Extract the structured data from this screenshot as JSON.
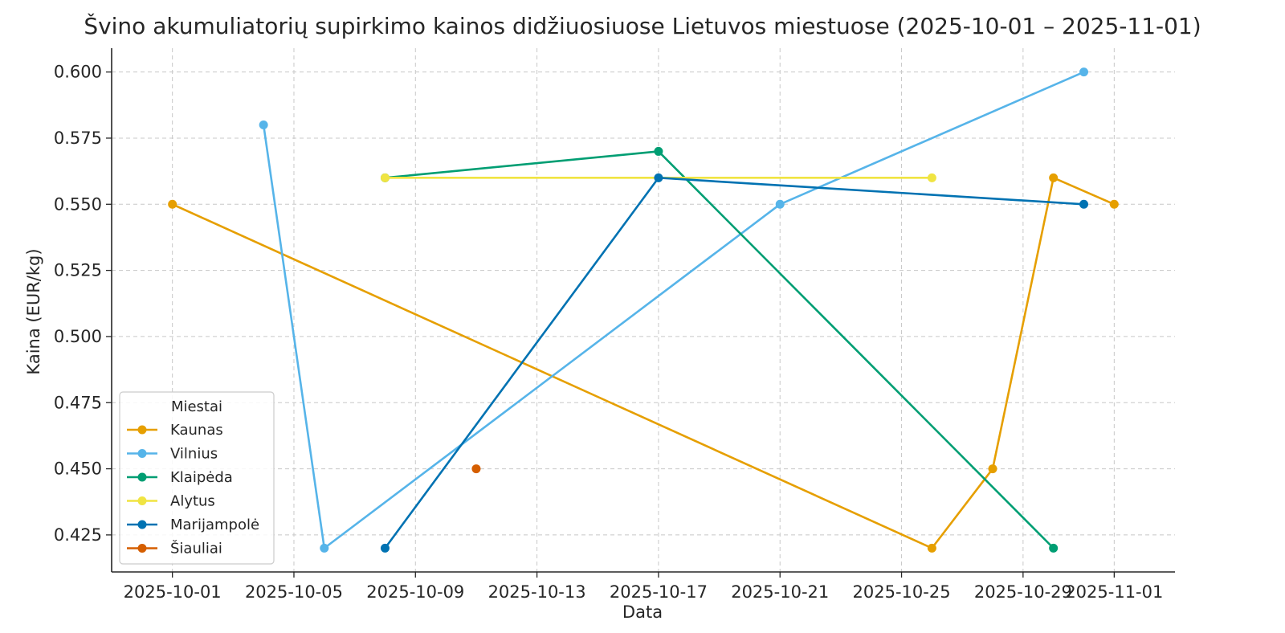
{
  "chart_data": {
    "type": "line",
    "title": "Švino akumuliatorių supirkimo kainos didžiuosiuose Lietuvos miestuose (2025-10-01 – 2025-11-01)",
    "xlabel": "Data",
    "ylabel": "Kaina (EUR/kg)",
    "x_ticks": [
      "2025-10-01",
      "2025-10-05",
      "2025-10-09",
      "2025-10-13",
      "2025-10-17",
      "2025-10-21",
      "2025-10-25",
      "2025-10-29",
      "2025-11-01"
    ],
    "y_ticks": [
      "0.425",
      "0.450",
      "0.475",
      "0.500",
      "0.525",
      "0.550",
      "0.575",
      "0.600"
    ],
    "xlim": [
      "2025-09-29",
      "2025-11-03"
    ],
    "ylim": [
      0.411,
      0.609
    ],
    "grid": true,
    "legend_title": "Miestai",
    "legend_position": "lower-left",
    "series": [
      {
        "name": "Kaunas",
        "color": "#E69F00",
        "points": [
          [
            "2025-10-01",
            0.55
          ],
          [
            "2025-10-26",
            0.42
          ],
          [
            "2025-10-28",
            0.45
          ],
          [
            "2025-10-30",
            0.56
          ],
          [
            "2025-11-01",
            0.55
          ]
        ]
      },
      {
        "name": "Vilnius",
        "color": "#56B4E9",
        "points": [
          [
            "2025-10-04",
            0.58
          ],
          [
            "2025-10-06",
            0.42
          ],
          [
            "2025-10-21",
            0.55
          ],
          [
            "2025-10-31",
            0.6
          ]
        ]
      },
      {
        "name": "Klaipėda",
        "color": "#009E73",
        "points": [
          [
            "2025-10-08",
            0.56
          ],
          [
            "2025-10-17",
            0.57
          ],
          [
            "2025-10-30",
            0.42
          ]
        ]
      },
      {
        "name": "Alytus",
        "color": "#F0E442",
        "points": [
          [
            "2025-10-08",
            0.56
          ],
          [
            "2025-10-26",
            0.56
          ]
        ]
      },
      {
        "name": "Marijampolė",
        "color": "#0072B2",
        "points": [
          [
            "2025-10-08",
            0.42
          ],
          [
            "2025-10-17",
            0.56
          ],
          [
            "2025-10-31",
            0.55
          ]
        ]
      },
      {
        "name": "Šiauliai",
        "color": "#D55E00",
        "points": [
          [
            "2025-10-11",
            0.45
          ]
        ]
      }
    ]
  }
}
